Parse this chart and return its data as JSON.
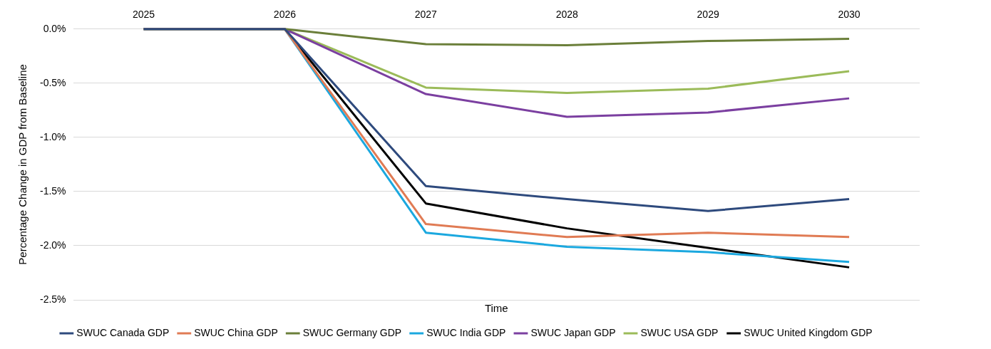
{
  "chart_data": {
    "type": "line",
    "xlabel": "Time",
    "ylabel": "Percentage Change in GDP from Baseline",
    "categories": [
      "2025",
      "2026",
      "2027",
      "2028",
      "2029",
      "2030"
    ],
    "series": [
      {
        "name": "SWUC Canada GDP",
        "color": "#2e4a7d",
        "values": [
          0,
          0,
          -1.45,
          -1.57,
          -1.68,
          -1.57
        ]
      },
      {
        "name": "SWUC China GDP",
        "color": "#e07b54",
        "values": [
          0,
          0,
          -1.8,
          -1.92,
          -1.88,
          -1.92
        ]
      },
      {
        "name": "SWUC Germany GDP",
        "color": "#6b7f3a",
        "values": [
          0,
          0,
          -0.14,
          -0.15,
          -0.11,
          -0.09
        ]
      },
      {
        "name": "SWUC India GDP",
        "color": "#1ba8df",
        "values": [
          0,
          0,
          -1.88,
          -2.01,
          -2.06,
          -2.15
        ]
      },
      {
        "name": "SWUC Japan GDP",
        "color": "#7b3fa0",
        "values": [
          0,
          0,
          -0.6,
          -0.81,
          -0.77,
          -0.64
        ]
      },
      {
        "name": "SWUC USA GDP",
        "color": "#9bbb59",
        "values": [
          0,
          0,
          -0.54,
          -0.59,
          -0.55,
          -0.39
        ]
      },
      {
        "name": "SWUC United Kingdom GDP",
        "color": "#000000",
        "values": [
          0,
          0,
          -1.61,
          -1.84,
          -2.02,
          -2.2
        ]
      }
    ],
    "ylim": [
      -2.5,
      0
    ],
    "yticks": [
      {
        "value": 0,
        "label": "0.0%"
      },
      {
        "value": -0.5,
        "label": "-0.5%"
      },
      {
        "value": -1,
        "label": "-1.0%"
      },
      {
        "value": -1.5,
        "label": "-1.5%"
      },
      {
        "value": -2,
        "label": "-2.0%"
      },
      {
        "value": -2.5,
        "label": "-2.5%"
      }
    ],
    "grid": "y",
    "legend": "bottom",
    "marker": "none",
    "line_style": "solid"
  }
}
